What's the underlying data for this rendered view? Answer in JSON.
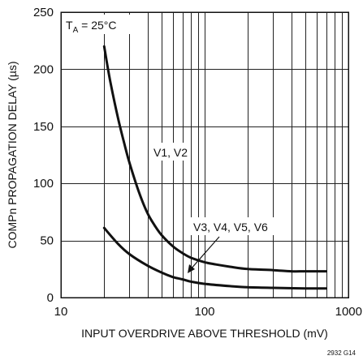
{
  "chart_data": {
    "type": "line",
    "title": "",
    "xlabel": "INPUT OVERDRIVE ABOVE THRESHOLD (mV)",
    "ylabel": "COMPn PROPAGATION DELAY (µs)",
    "x_scale": "log",
    "xlim": [
      10,
      1000
    ],
    "ylim": [
      0,
      250
    ],
    "x_ticks": [
      "10",
      "100",
      "1000"
    ],
    "y_ticks": [
      "0",
      "50",
      "100",
      "150",
      "200",
      "250"
    ],
    "grid": true,
    "series": [
      {
        "name": "V1, V2",
        "x": [
          20,
          22,
          25,
          28,
          30,
          35,
          40,
          45,
          50,
          60,
          70,
          80,
          100,
          120,
          150,
          200,
          300,
          400,
          500,
          700
        ],
        "y": [
          220,
          190,
          157,
          132,
          118,
          92,
          74,
          63,
          55,
          45,
          39,
          35,
          31,
          29,
          27,
          25,
          24,
          23,
          23,
          23
        ]
      },
      {
        "name": "V3, V4, V5, V6",
        "x": [
          20,
          25,
          30,
          40,
          50,
          60,
          70,
          80,
          100,
          150,
          200,
          300,
          500,
          700
        ],
        "y": [
          61,
          47,
          38,
          28,
          22,
          18,
          16,
          14,
          12,
          10,
          9,
          8.5,
          8,
          8
        ]
      }
    ],
    "annotations": {
      "temperature": {
        "main": "T",
        "sub": "A",
        "rest": " = 25°C"
      },
      "series_labels": [
        "V1, V2",
        "V3, V4, V5, V6"
      ]
    },
    "figure_id": "2932 G14"
  }
}
